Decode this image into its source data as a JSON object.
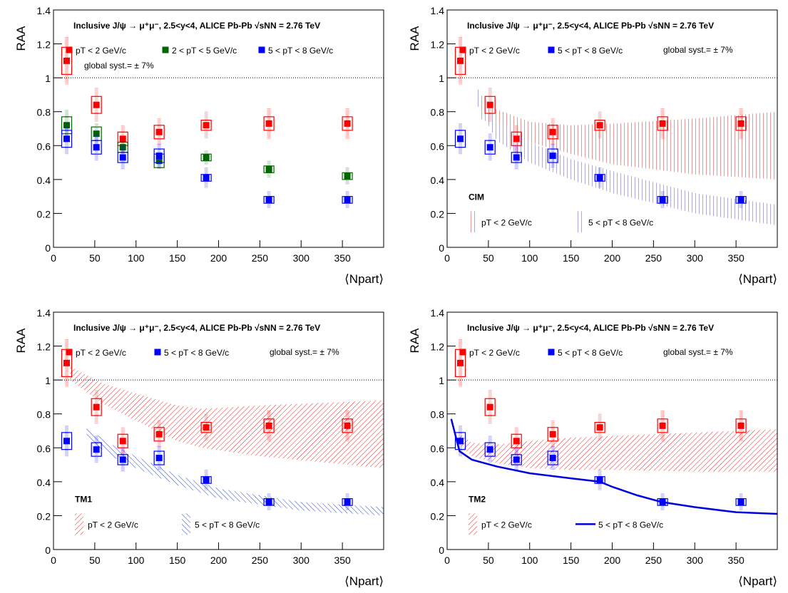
{
  "chart_data": [
    {
      "type": "scatter",
      "title": "Inclusive J/ψ → μ⁺μ⁻,  2.5<y<4, ALICE Pb-Pb √sNN = 2.76 TeV",
      "xlabel": "⟨Npart⟩",
      "ylabel": "RAA",
      "xlim": [
        0,
        400
      ],
      "ylim": [
        0,
        1.4
      ],
      "xticks": [
        0,
        50,
        100,
        150,
        200,
        250,
        300,
        350
      ],
      "yticks": [
        0,
        0.2,
        0.4,
        0.6,
        0.8,
        1,
        1.2,
        1.4
      ],
      "reference_line": 1,
      "note": "global syst.= ± 7%",
      "series": [
        {
          "name": "pT < 2 GeV/c",
          "color": "#ff0000",
          "x": [
            16,
            52,
            84,
            128,
            185,
            261,
            356
          ],
          "values": [
            1.1,
            0.84,
            0.64,
            0.68,
            0.72,
            0.73,
            0.73
          ],
          "errors": [
            0.14,
            0.1,
            0.08,
            0.08,
            0.08,
            0.09,
            0.09
          ],
          "syst": [
            0.08,
            0.05,
            0.04,
            0.04,
            0.03,
            0.04,
            0.04
          ]
        },
        {
          "name": "2 < pT < 5 GeV/c",
          "color": "#006600",
          "x": [
            16,
            52,
            84,
            128,
            185,
            261,
            356
          ],
          "values": [
            0.72,
            0.67,
            0.59,
            0.51,
            0.53,
            0.46,
            0.42
          ],
          "errors": [
            0.09,
            0.06,
            0.05,
            0.05,
            0.04,
            0.05,
            0.05
          ],
          "syst": [
            0.05,
            0.04,
            0.03,
            0.04,
            0.02,
            0.02,
            0.02
          ]
        },
        {
          "name": "5 < pT < 8 GeV/c",
          "color": "#0000ff",
          "x": [
            16,
            52,
            84,
            128,
            185,
            261,
            356
          ],
          "values": [
            0.64,
            0.59,
            0.53,
            0.54,
            0.41,
            0.28,
            0.28
          ],
          "errors": [
            0.09,
            0.08,
            0.07,
            0.07,
            0.06,
            0.05,
            0.05
          ],
          "syst": [
            0.05,
            0.04,
            0.03,
            0.04,
            0.02,
            0.02,
            0.02
          ]
        }
      ]
    },
    {
      "type": "scatter",
      "title": "Inclusive J/ψ → μ⁺μ⁻,  2.5<y<4, ALICE Pb-Pb √sNN = 2.76 TeV",
      "xlabel": "⟨Npart⟩",
      "ylabel": "RAA",
      "xlim": [
        0,
        400
      ],
      "ylim": [
        0,
        1.4
      ],
      "xticks": [
        0,
        50,
        100,
        150,
        200,
        250,
        300,
        350
      ],
      "yticks": [
        0,
        0.2,
        0.4,
        0.6,
        0.8,
        1,
        1.2,
        1.4
      ],
      "reference_line": 1,
      "note": "global syst.= ± 7%",
      "model_label": "CIM",
      "series": [
        {
          "name": "pT < 2 GeV/c",
          "color": "#ff0000",
          "x": [
            16,
            52,
            84,
            128,
            185,
            261,
            356
          ],
          "values": [
            1.1,
            0.84,
            0.64,
            0.68,
            0.72,
            0.73,
            0.73
          ],
          "errors": [
            0.14,
            0.1,
            0.08,
            0.08,
            0.08,
            0.09,
            0.09
          ],
          "syst": [
            0.08,
            0.05,
            0.04,
            0.04,
            0.03,
            0.04,
            0.04
          ]
        },
        {
          "name": "5 < pT < 8 GeV/c",
          "color": "#0000ff",
          "x": [
            16,
            52,
            84,
            128,
            185,
            261,
            356
          ],
          "values": [
            0.64,
            0.59,
            0.53,
            0.54,
            0.41,
            0.28,
            0.28
          ],
          "errors": [
            0.09,
            0.08,
            0.07,
            0.07,
            0.06,
            0.05,
            0.05
          ],
          "syst": [
            0.05,
            0.04,
            0.03,
            0.04,
            0.02,
            0.02,
            0.02
          ]
        }
      ],
      "models": [
        {
          "type": "band",
          "name": "pT < 2 GeV/c",
          "color": "#cc3333",
          "x": [
            40,
            100,
            150,
            200,
            300,
            400
          ],
          "lower": [
            0.76,
            0.62,
            0.55,
            0.49,
            0.43,
            0.4
          ],
          "upper": [
            0.85,
            0.74,
            0.72,
            0.73,
            0.76,
            0.8
          ]
        },
        {
          "type": "band",
          "name": "5 < pT < 8 GeV/c",
          "color": "#5555cc",
          "x": [
            35,
            60,
            100,
            150,
            200,
            300,
            400
          ],
          "lower": [
            0.85,
            0.63,
            0.5,
            0.4,
            0.32,
            0.2,
            0.13
          ],
          "upper": [
            0.95,
            0.74,
            0.62,
            0.52,
            0.45,
            0.32,
            0.25
          ]
        }
      ]
    },
    {
      "type": "scatter",
      "title": "Inclusive J/ψ → μ⁺μ⁻,  2.5<y<4, ALICE Pb-Pb √sNN = 2.76 TeV",
      "xlabel": "⟨Npart⟩",
      "ylabel": "RAA",
      "xlim": [
        0,
        400
      ],
      "ylim": [
        0,
        1.4
      ],
      "xticks": [
        0,
        50,
        100,
        150,
        200,
        250,
        300,
        350
      ],
      "yticks": [
        0,
        0.2,
        0.4,
        0.6,
        0.8,
        1,
        1.2,
        1.4
      ],
      "reference_line": 1,
      "note": "global syst.= ± 7%",
      "model_label": "TM1",
      "series": [
        {
          "name": "pT < 2 GeV/c",
          "color": "#ff0000",
          "x": [
            16,
            52,
            84,
            128,
            185,
            261,
            356
          ],
          "values": [
            1.1,
            0.84,
            0.64,
            0.68,
            0.72,
            0.73,
            0.73
          ],
          "errors": [
            0.14,
            0.1,
            0.08,
            0.08,
            0.08,
            0.09,
            0.09
          ],
          "syst": [
            0.08,
            0.05,
            0.04,
            0.04,
            0.03,
            0.04,
            0.04
          ]
        },
        {
          "name": "5 < pT < 8 GeV/c",
          "color": "#0000ff",
          "x": [
            16,
            52,
            84,
            128,
            185,
            261,
            356
          ],
          "values": [
            0.64,
            0.59,
            0.53,
            0.54,
            0.41,
            0.28,
            0.28
          ],
          "errors": [
            0.09,
            0.08,
            0.07,
            0.07,
            0.06,
            0.05,
            0.05
          ],
          "syst": [
            0.05,
            0.04,
            0.03,
            0.04,
            0.02,
            0.02,
            0.02
          ]
        }
      ],
      "models": [
        {
          "type": "band",
          "name": "pT < 2 GeV/c",
          "color": "#ee2222",
          "x": [
            20,
            60,
            100,
            150,
            180,
            250,
            400
          ],
          "lower": [
            1.0,
            0.86,
            0.76,
            0.64,
            0.6,
            0.55,
            0.48
          ],
          "upper": [
            1.08,
            0.98,
            0.92,
            0.85,
            0.83,
            0.85,
            0.88
          ]
        },
        {
          "type": "band",
          "name": "5 < pT < 8 GeV/c",
          "color": "#2244cc",
          "x": [
            40,
            70,
            100,
            150,
            200,
            300,
            400
          ],
          "lower": [
            0.66,
            0.55,
            0.48,
            0.38,
            0.3,
            0.23,
            0.2
          ],
          "upper": [
            0.72,
            0.62,
            0.55,
            0.44,
            0.36,
            0.28,
            0.25
          ]
        }
      ]
    },
    {
      "type": "scatter",
      "title": "Inclusive J/ψ → μ⁺μ⁻,  2.5<y<4, ALICE Pb-Pb √sNN = 2.76 TeV",
      "xlabel": "⟨Npart⟩",
      "ylabel": "RAA",
      "xlim": [
        0,
        400
      ],
      "ylim": [
        0,
        1.4
      ],
      "xticks": [
        0,
        50,
        100,
        150,
        200,
        250,
        300,
        350
      ],
      "yticks": [
        0,
        0.2,
        0.4,
        0.6,
        0.8,
        1,
        1.2,
        1.4
      ],
      "reference_line": 1,
      "note": "global syst.= ± 7%",
      "model_label": "TM2",
      "series": [
        {
          "name": "pT < 2 GeV/c",
          "color": "#ff0000",
          "x": [
            16,
            52,
            84,
            128,
            185,
            261,
            356
          ],
          "values": [
            1.1,
            0.84,
            0.64,
            0.68,
            0.72,
            0.73,
            0.73
          ],
          "errors": [
            0.14,
            0.1,
            0.08,
            0.08,
            0.08,
            0.09,
            0.09
          ],
          "syst": [
            0.08,
            0.05,
            0.04,
            0.04,
            0.03,
            0.04,
            0.04
          ]
        },
        {
          "name": "5 < pT < 8 GeV/c",
          "color": "#0000ff",
          "x": [
            16,
            52,
            84,
            128,
            185,
            261,
            356
          ],
          "values": [
            0.64,
            0.59,
            0.53,
            0.54,
            0.41,
            0.28,
            0.28
          ],
          "errors": [
            0.09,
            0.08,
            0.07,
            0.07,
            0.06,
            0.05,
            0.05
          ],
          "syst": [
            0.05,
            0.04,
            0.03,
            0.04,
            0.02,
            0.02,
            0.02
          ]
        }
      ],
      "models": [
        {
          "type": "band",
          "name": "pT < 2 GeV/c",
          "color": "#ee2222",
          "x": [
            15,
            30,
            60,
            100,
            150,
            200,
            300,
            400
          ],
          "lower": [
            0.62,
            0.55,
            0.51,
            0.48,
            0.47,
            0.47,
            0.46,
            0.46
          ],
          "upper": [
            0.68,
            0.63,
            0.62,
            0.64,
            0.66,
            0.67,
            0.69,
            0.71
          ]
        },
        {
          "type": "line",
          "name": "5 < pT < 8 GeV/c",
          "color": "#0000dd",
          "x": [
            5,
            15,
            30,
            60,
            100,
            150,
            185,
            200,
            230,
            260,
            300,
            350,
            400
          ],
          "values": [
            0.77,
            0.58,
            0.53,
            0.49,
            0.45,
            0.42,
            0.4,
            0.37,
            0.32,
            0.28,
            0.25,
            0.22,
            0.21
          ]
        }
      ]
    }
  ]
}
